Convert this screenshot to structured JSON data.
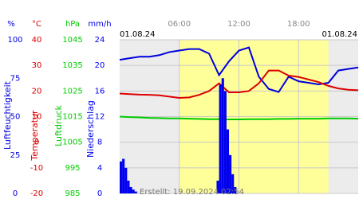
{
  "chart_data": {
    "type": "line",
    "dates": [
      "01.08.24",
      "01.08.24"
    ],
    "footer": "Erstellt: 19.09.2024 02:54",
    "x": [
      0,
      1,
      2,
      3,
      4,
      5,
      6,
      7,
      8,
      9,
      10,
      11,
      12,
      13,
      14,
      15,
      16,
      17,
      18,
      19,
      20,
      21,
      22,
      23,
      24
    ],
    "xlim": [
      0,
      24
    ],
    "xticks": [
      {
        "value": 6,
        "label": "06:00"
      },
      {
        "value": 12,
        "label": "12:00"
      },
      {
        "value": 18,
        "label": "18:00"
      }
    ],
    "daylight": [
      6,
      21
    ],
    "grid": true,
    "series": [
      {
        "name": "Luftfeuchtigkeit",
        "unit": "%",
        "type": "line",
        "color": "#0000dd",
        "ylim": [
          0,
          100
        ],
        "yticks": [
          0,
          25,
          50,
          75,
          100
        ],
        "values": [
          87,
          88,
          89,
          89,
          90,
          92,
          93,
          94,
          94,
          91,
          77,
          86,
          93,
          95,
          76,
          68,
          66,
          76,
          73,
          72,
          71,
          72,
          80,
          81,
          82
        ]
      },
      {
        "name": "Temperatur",
        "unit": "°C",
        "type": "line",
        "color": "#dd0000",
        "ylim": [
          -20,
          40
        ],
        "yticks": [
          -20,
          -10,
          0,
          10,
          20,
          30,
          40
        ],
        "values": [
          19,
          18.8,
          18.6,
          18.5,
          18.3,
          17.8,
          17.3,
          17.5,
          18.5,
          20,
          23,
          19.5,
          19.5,
          20,
          23,
          28,
          28,
          26,
          25.5,
          24.5,
          23.5,
          22,
          21,
          20.5,
          20.3
        ]
      },
      {
        "name": "Luftdruck",
        "unit": "hPa",
        "type": "line",
        "color": "#00cc00",
        "ylim": [
          985,
          1045
        ],
        "yticks": [
          985,
          995,
          1005,
          1015,
          1025,
          1035,
          1045
        ],
        "values": [
          1015,
          1014.8,
          1014.7,
          1014.5,
          1014.4,
          1014.3,
          1014.3,
          1014.2,
          1014.1,
          1014,
          1014,
          1013.9,
          1013.9,
          1014,
          1014,
          1014,
          1014.1,
          1014.1,
          1014.2,
          1014.2,
          1014.2,
          1014.3,
          1014.3,
          1014.3,
          1014.2
        ]
      },
      {
        "name": "Niederschlag",
        "unit": "mm/h",
        "type": "bar",
        "color": "#0000ee",
        "ylim": [
          0,
          24
        ],
        "yticks": [
          0,
          4,
          8,
          12,
          16,
          20,
          24
        ],
        "x": [
          0,
          0.25,
          0.5,
          0.75,
          1,
          1.25,
          1.5,
          9.75,
          10,
          10.25,
          10.5,
          10.75,
          11,
          11.25,
          11.5
        ],
        "values": [
          5,
          5.4,
          4,
          2,
          1,
          0.6,
          0.3,
          2,
          17,
          18,
          16,
          10,
          6,
          3,
          1
        ]
      }
    ]
  }
}
